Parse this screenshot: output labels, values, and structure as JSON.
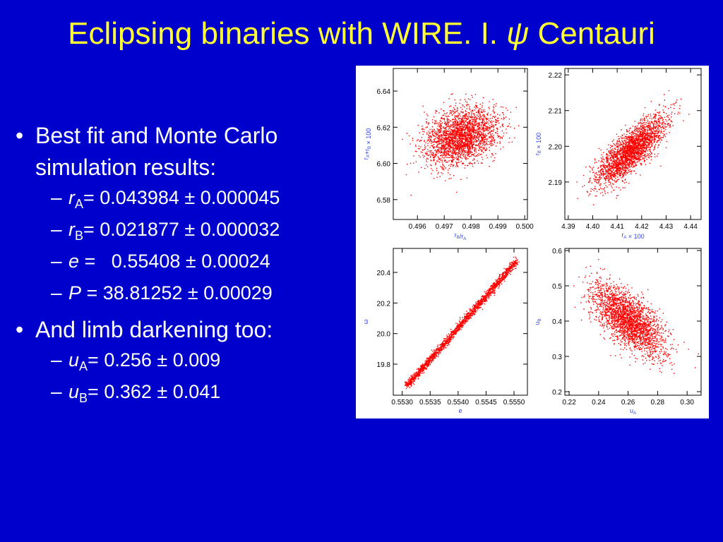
{
  "title": {
    "text": "Eclipsing binaries with WIRE. I.",
    "symbol": "ψ",
    "name": "Centauri"
  },
  "bullets": [
    {
      "lines": [
        "Best fit and Monte Carlo",
        "simulation results:"
      ],
      "items": [
        {
          "symbol": "r",
          "sub": "A",
          "rest": "= 0.043984 ± 0.000045"
        },
        {
          "symbol": "r",
          "sub": "B",
          "rest": "= 0.021877 ± 0.000032"
        },
        {
          "symbol": "e",
          "rest": " =   0.55408 ± 0.00024"
        },
        {
          "symbol": "P",
          "rest": " = 38.81252 ± 0.00029"
        }
      ]
    },
    {
      "lines": [
        "And limb darkening too:"
      ],
      "items": [
        {
          "symbol": "u",
          "sub": "A",
          "rest": "= 0.256 ± 0.009"
        },
        {
          "symbol": "u",
          "sub": "B",
          "rest": "= 0.362 ± 0.041"
        }
      ]
    }
  ],
  "plots": [
    {
      "xlim": [
        0.4951,
        0.5001
      ],
      "ylim": [
        6.569,
        6.6525
      ],
      "xticks": [
        0.496,
        0.497,
        0.498,
        0.499,
        {
          "value": 0.5,
          "label": "0.500"
        }
      ],
      "yticks": [
        6.58,
        {
          "value": 6.6,
          "label": "6.60"
        },
        6.62,
        6.64
      ],
      "xlabel": [
        [
          "r",
          "B"
        ],
        [
          "/r",
          "A"
        ]
      ],
      "ylabel": [
        [
          "r",
          "A"
        ],
        [
          "+r",
          "B"
        ],
        [
          " × 100"
        ]
      ]
    },
    {
      "xlim": [
        4.3886,
        4.4443
      ],
      "ylim": [
        2.1795,
        2.2218
      ],
      "xticks": [
        4.39,
        {
          "value": 4.4,
          "label": "4.40"
        },
        4.41,
        4.42,
        4.43,
        4.44
      ],
      "yticks": [
        2.19,
        {
          "value": 2.2,
          "label": "2.20"
        },
        2.21,
        2.22
      ],
      "xlabel": [
        [
          "r",
          "A"
        ],
        [
          " × 100"
        ]
      ],
      "ylabel": [
        [
          "r",
          "B"
        ],
        [
          " × 100"
        ]
      ]
    },
    {
      "xlim": [
        0.55284,
        0.55524
      ],
      "ylim": [
        19.597,
        20.557
      ],
      "xticks": [
        {
          "value": 0.553,
          "label": "0.5530"
        },
        0.5535,
        {
          "value": 0.554,
          "label": "0.5540"
        },
        0.5545,
        {
          "value": 0.555,
          "label": "0.5550"
        }
      ],
      "yticks": [
        19.8,
        {
          "value": 20,
          "label": "20.0"
        },
        20.2,
        20.4
      ],
      "xlabel": [
        [
          "e"
        ]
      ],
      "ylabel": [
        [
          "ω"
        ]
      ]
    },
    {
      "xlim": [
        0.2171,
        0.3095
      ],
      "ylim": [
        0.19,
        0.606
      ],
      "xticks": [
        0.22,
        0.24,
        0.26,
        0.28,
        {
          "value": 0.3,
          "label": "0.30"
        }
      ],
      "yticks": [
        0.2,
        0.3,
        0.4,
        0.5,
        0.6
      ],
      "xlabel": [
        [
          "u",
          "A"
        ]
      ],
      "ylabel": [
        [
          "u",
          "B"
        ]
      ]
    }
  ]
}
